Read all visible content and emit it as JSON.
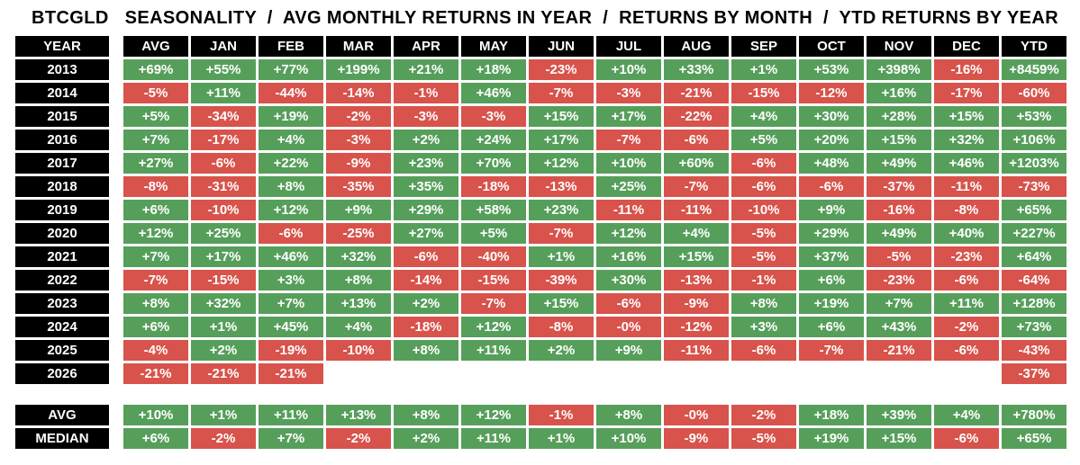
{
  "title": "BTCGLD   SEASONALITY  /  AVG MONTHLY RETURNS IN YEAR  /  RETURNS BY MONTH  /  YTD RETURNS BY YEAR",
  "colors": {
    "positive": "#569F5B",
    "negative": "#D8534B",
    "header_bg": "#000000",
    "header_text": "#FFFFFF",
    "cell_text": "#FFFFFF",
    "page_bg": "#FFFFFF"
  },
  "chart_data": {
    "type": "heatmap",
    "title": "BTCGLD SEASONALITY / AVG MONTHLY RETURNS IN YEAR / RETURNS BY MONTH / YTD RETURNS BY YEAR",
    "legend_position": "none",
    "grid": "white cell borders",
    "columns": [
      "YEAR",
      "AVG",
      "JAN",
      "FEB",
      "MAR",
      "APR",
      "MAY",
      "JUN",
      "JUL",
      "AUG",
      "SEP",
      "OCT",
      "NOV",
      "DEC",
      "YTD"
    ],
    "rows": [
      {
        "label": "2013",
        "values": [
          "+69%",
          "+55%",
          "+77%",
          "+199%",
          "+21%",
          "+18%",
          "-23%",
          "+10%",
          "+33%",
          "+1%",
          "+53%",
          "+398%",
          "-16%",
          "+8459%"
        ]
      },
      {
        "label": "2014",
        "values": [
          "-5%",
          "+11%",
          "-44%",
          "-14%",
          "-1%",
          "+46%",
          "-7%",
          "-3%",
          "-21%",
          "-15%",
          "-12%",
          "+16%",
          "-17%",
          "-60%"
        ]
      },
      {
        "label": "2015",
        "values": [
          "+5%",
          "-34%",
          "+19%",
          "-2%",
          "-3%",
          "-3%",
          "+15%",
          "+17%",
          "-22%",
          "+4%",
          "+30%",
          "+28%",
          "+15%",
          "+53%"
        ]
      },
      {
        "label": "2016",
        "values": [
          "+7%",
          "-17%",
          "+4%",
          "-3%",
          "+2%",
          "+24%",
          "+17%",
          "-7%",
          "-6%",
          "+5%",
          "+20%",
          "+15%",
          "+32%",
          "+106%"
        ]
      },
      {
        "label": "2017",
        "values": [
          "+27%",
          "-6%",
          "+22%",
          "-9%",
          "+23%",
          "+70%",
          "+12%",
          "+10%",
          "+60%",
          "-6%",
          "+48%",
          "+49%",
          "+46%",
          "+1203%"
        ]
      },
      {
        "label": "2018",
        "values": [
          "-8%",
          "-31%",
          "+8%",
          "-35%",
          "+35%",
          "-18%",
          "-13%",
          "+25%",
          "-7%",
          "-6%",
          "-6%",
          "-37%",
          "-11%",
          "-73%"
        ]
      },
      {
        "label": "2019",
        "values": [
          "+6%",
          "-10%",
          "+12%",
          "+9%",
          "+29%",
          "+58%",
          "+23%",
          "-11%",
          "-11%",
          "-10%",
          "+9%",
          "-16%",
          "-8%",
          "+65%"
        ]
      },
      {
        "label": "2020",
        "values": [
          "+12%",
          "+25%",
          "-6%",
          "-25%",
          "+27%",
          "+5%",
          "-7%",
          "+12%",
          "+4%",
          "-5%",
          "+29%",
          "+49%",
          "+40%",
          "+227%"
        ]
      },
      {
        "label": "2021",
        "values": [
          "+7%",
          "+17%",
          "+46%",
          "+32%",
          "-6%",
          "-40%",
          "+1%",
          "+16%",
          "+15%",
          "-5%",
          "+37%",
          "-5%",
          "-23%",
          "+64%"
        ]
      },
      {
        "label": "2022",
        "values": [
          "-7%",
          "-15%",
          "+3%",
          "+8%",
          "-14%",
          "-15%",
          "-39%",
          "+30%",
          "-13%",
          "-1%",
          "+6%",
          "-23%",
          "-6%",
          "-64%"
        ]
      },
      {
        "label": "2023",
        "values": [
          "+8%",
          "+32%",
          "+7%",
          "+13%",
          "+2%",
          "-7%",
          "+15%",
          "-6%",
          "-9%",
          "+8%",
          "+19%",
          "+7%",
          "+11%",
          "+128%"
        ]
      },
      {
        "label": "2024",
        "values": [
          "+6%",
          "+1%",
          "+45%",
          "+4%",
          "-18%",
          "+12%",
          "-8%",
          "-0%",
          "-12%",
          "+3%",
          "+6%",
          "+43%",
          "-2%",
          "+73%"
        ]
      },
      {
        "label": "2025",
        "values": [
          "-4%",
          "+2%",
          "-19%",
          "-10%",
          "+8%",
          "+11%",
          "+2%",
          "+9%",
          "-11%",
          "-6%",
          "-7%",
          "-21%",
          "-6%",
          "-43%"
        ]
      },
      {
        "label": "2026",
        "values": [
          "-21%",
          "-21%",
          "-21%",
          "",
          "",
          "",
          "",
          "",
          "",
          "",
          "",
          "",
          "",
          "-37%"
        ]
      }
    ],
    "summary_rows": [
      {
        "label": "AVG",
        "values": [
          "+10%",
          "+1%",
          "+11%",
          "+13%",
          "+8%",
          "+12%",
          "-1%",
          "+8%",
          "-0%",
          "-2%",
          "+18%",
          "+39%",
          "+4%",
          "+780%"
        ]
      },
      {
        "label": "MEDIAN",
        "values": [
          "+6%",
          "-2%",
          "+7%",
          "-2%",
          "+2%",
          "+11%",
          "+1%",
          "+10%",
          "-9%",
          "-5%",
          "+19%",
          "+15%",
          "-6%",
          "+65%"
        ]
      }
    ]
  }
}
